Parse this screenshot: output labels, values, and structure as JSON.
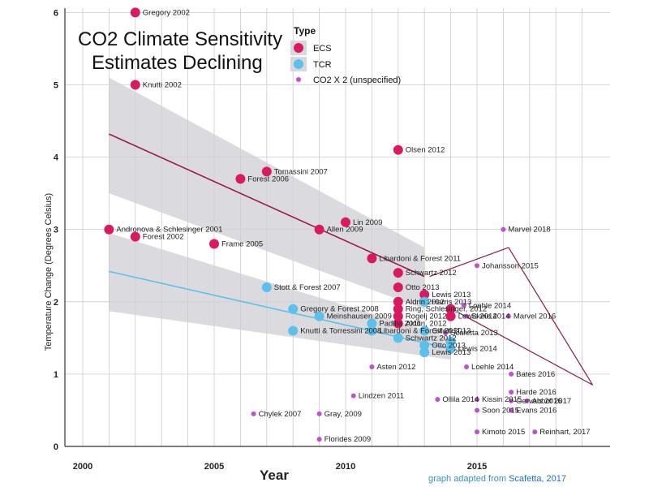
{
  "chart_data": {
    "type": "scatter",
    "title_lines": [
      "CO2 Climate Sensitivity",
      "Estimates Declining"
    ],
    "xlabel": "Year",
    "ylabel": "Temperature Change (Degrees Celsius)",
    "xlim": [
      2000,
      2019.5
    ],
    "ylim": [
      0,
      6.1
    ],
    "x_ticks": [
      2000,
      2005,
      2010,
      2015
    ],
    "y_ticks": [
      0,
      1,
      2,
      3,
      4,
      5,
      6
    ],
    "grid": true,
    "legend": {
      "title": "Type",
      "placement": "top-center",
      "entries": [
        {
          "label": "ECS",
          "color": "#d81b60"
        },
        {
          "label": "TCR",
          "color": "#5bc0eb"
        },
        {
          "label": "CO2 X 2 (unspecified)",
          "color": "#c050d0"
        }
      ]
    },
    "colors": {
      "ECS": "#d81b60",
      "TCR": "#5bc0eb",
      "CO2X2": "#c050d0",
      "trend_ECS": "#9b1b4b",
      "trend_TCR": "#5bc0eb",
      "band": "#cfcfd4"
    },
    "series": [
      {
        "name": "ECS",
        "points": [
          {
            "label": "Gregory 2002",
            "x": 2002,
            "y": 6.0
          },
          {
            "label": "Knutti 2002",
            "x": 2002,
            "y": 5.0
          },
          {
            "label": "Andronova & Schlesinger 2001",
            "x": 2001,
            "y": 3.0
          },
          {
            "label": "Forest 2002",
            "x": 2002,
            "y": 2.9
          },
          {
            "label": "Frame 2005",
            "x": 2005,
            "y": 2.8
          },
          {
            "label": "Forest 2006",
            "x": 2006,
            "y": 3.7
          },
          {
            "label": "Tomassini 2007",
            "x": 2007,
            "y": 3.8
          },
          {
            "label": "Olsen 2012",
            "x": 2012,
            "y": 4.1
          },
          {
            "label": "Lin 2009",
            "x": 2010,
            "y": 3.1
          },
          {
            "label": "Allen 2009",
            "x": 2009,
            "y": 3.0
          },
          {
            "label": "Libardoni & Forest 2011",
            "x": 2011,
            "y": 2.6
          },
          {
            "label": "Schwartz 2012",
            "x": 2012,
            "y": 2.4
          },
          {
            "label": "Otto 2013",
            "x": 2012,
            "y": 2.2
          },
          {
            "label": "Lewis 2013",
            "x": 2013,
            "y": 2.1
          },
          {
            "label": "Aldrin 2012",
            "x": 2012,
            "y": 2.0
          },
          {
            "label": "Ring, Schlesinger, 2012",
            "x": 2012,
            "y": 1.9
          },
          {
            "label": "Rogelj 2012",
            "x": 2012,
            "y": 1.8
          },
          {
            "label": "Aldrin, 2012",
            "x": 2012,
            "y": 1.7
          },
          {
            "label": "Lewis 2014",
            "x": 2014,
            "y": 1.8
          },
          {
            "label": "",
            "x": 2014,
            "y": 1.9
          }
        ]
      },
      {
        "name": "TCR",
        "points": [
          {
            "label": "Stott & Forest 2007",
            "x": 2007,
            "y": 2.2
          },
          {
            "label": "Gregory & Forest 2008",
            "x": 2008,
            "y": 1.9
          },
          {
            "label": "Meinshausen 2009",
            "x": 2009,
            "y": 1.8
          },
          {
            "label": "Knutti & Torressini 2008",
            "x": 2008,
            "y": 1.6
          },
          {
            "label": "Padilla 2011",
            "x": 2011,
            "y": 1.7
          },
          {
            "label": "Libardoni & Forest 2011",
            "x": 2011,
            "y": 1.6
          },
          {
            "label": "Harris 2013",
            "x": 2013,
            "y": 2.0
          },
          {
            "label": "Gillett 2013",
            "x": 2013,
            "y": 1.6
          },
          {
            "label": "Schwartz 2012",
            "x": 2012,
            "y": 1.5
          },
          {
            "label": "Otto 2013",
            "x": 2013,
            "y": 1.4
          },
          {
            "label": "Lewis 2013",
            "x": 2013,
            "y": 1.3
          },
          {
            "label": "Lewis 2014",
            "x": 2014,
            "y": 1.35
          },
          {
            "label": "",
            "x": 2014,
            "y": 1.45
          }
        ]
      },
      {
        "name": "CO2 X 2 (unspecified)",
        "points": [
          {
            "label": "Marvel 2018",
            "x": 2016,
            "y": 3.0
          },
          {
            "label": "Johansson 2015",
            "x": 2015,
            "y": 2.5
          },
          {
            "label": "Loehle 2014",
            "x": 2014.5,
            "y": 1.95
          },
          {
            "label": "Skeie 2014",
            "x": 2014.6,
            "y": 1.8
          },
          {
            "label": "Marvel 2016",
            "x": 2016.2,
            "y": 1.8
          },
          {
            "label": "Scafetta 2013",
            "x": 2013.8,
            "y": 1.57
          },
          {
            "label": "Loehle 2014",
            "x": 2014.6,
            "y": 1.1
          },
          {
            "label": "Asten 2012",
            "x": 2011,
            "y": 1.1
          },
          {
            "label": "Bates 2016",
            "x": 2016.3,
            "y": 1.0
          },
          {
            "label": "Harde 2016",
            "x": 2016.3,
            "y": 0.75
          },
          {
            "label": "Lindzen 2011",
            "x": 2010.3,
            "y": 0.7
          },
          {
            "label": "Ollila 2014",
            "x": 2013.5,
            "y": 0.65
          },
          {
            "label": "Kissin 2015",
            "x": 2015,
            "y": 0.65
          },
          {
            "label": "Gervais 2016",
            "x": 2016.3,
            "y": 0.63
          },
          {
            "label": "Abbot 2017",
            "x": 2016.9,
            "y": 0.63
          },
          {
            "label": "Soon 2015",
            "x": 2015,
            "y": 0.5
          },
          {
            "label": "Evans 2016",
            "x": 2016.3,
            "y": 0.5
          },
          {
            "label": "Chylek 2007",
            "x": 2006.5,
            "y": 0.45
          },
          {
            "label": "Gray, 2009",
            "x": 2009,
            "y": 0.45
          },
          {
            "label": "Kimoto 2015",
            "x": 2015,
            "y": 0.2
          },
          {
            "label": "Reinhart, 2017",
            "x": 2017.2,
            "y": 0.2
          },
          {
            "label": "Florides 2009",
            "x": 2009,
            "y": 0.1
          }
        ]
      }
    ],
    "trends": [
      {
        "name": "ECS",
        "x": [
          2001,
          2013
        ],
        "y": [
          4.32,
          2.35
        ],
        "band_upper": [
          5.1,
          2.75
        ],
        "band_lower": [
          3.5,
          1.9
        ]
      },
      {
        "name": "TCR",
        "x": [
          2001,
          2014
        ],
        "y": [
          2.42,
          1.35
        ],
        "band_upper": [
          2.95,
          1.5
        ],
        "band_lower": [
          1.87,
          1.2
        ]
      }
    ],
    "credit": {
      "prefix": "graph adapted from ",
      "source": "Scafetta, 2017"
    }
  }
}
